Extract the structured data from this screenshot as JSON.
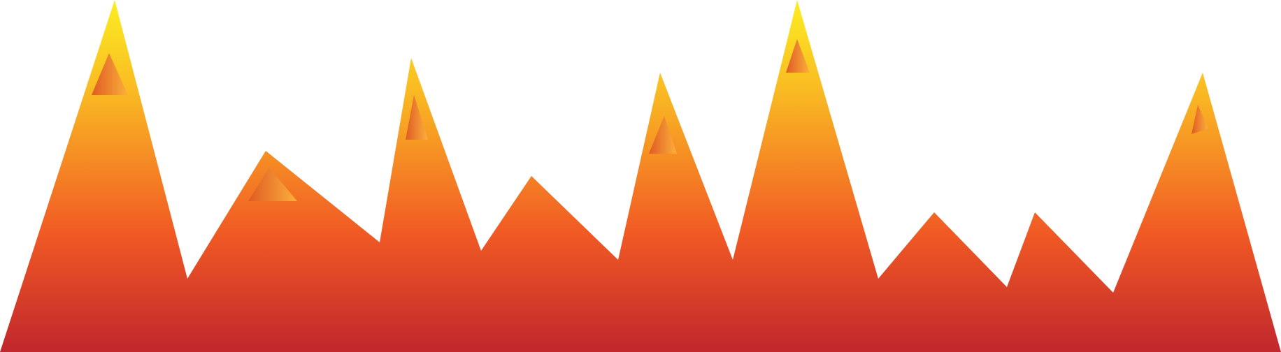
{
  "illustration": {
    "subject": "mountain-range",
    "gradient_colors": {
      "top": "#FCEE21",
      "upper": "#F9B523",
      "middle": "#F15A24",
      "bottom": "#C1272D"
    },
    "highlight_colors": {
      "left": "#E05A24",
      "right": "#FBB03B"
    }
  }
}
